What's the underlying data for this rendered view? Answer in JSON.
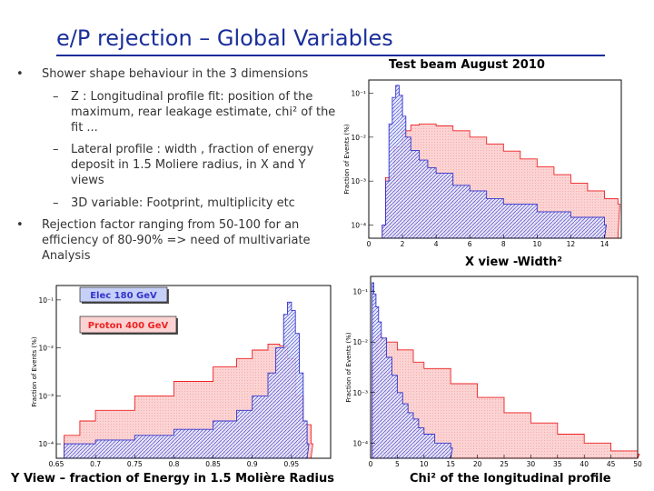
{
  "slide": {
    "title": "e/P rejection – Global Variables",
    "bullets": [
      {
        "marker": "•",
        "text": "Shower shape behaviour in the 3 dimensions",
        "sub": [
          {
            "marker": "–",
            "text": "Z : Longitudinal profile fit: position of the maximum, rear leakage estimate, chi² of the fit ..."
          },
          {
            "marker": "–",
            "text": "Lateral profile : width , fraction of energy deposit in 1.5 Moliere radius, in X and Y views"
          },
          {
            "marker": "–",
            "text": "3D variable: Footprint, multiplicity etc"
          }
        ]
      },
      {
        "marker": "•",
        "text": "Rejection factor ranging from 50-100 for an efficiency of 80-90% => need of multivariate Analysis",
        "sub": []
      }
    ]
  },
  "colors": {
    "title": "#1a2f9a",
    "electron": "#3333cc",
    "proton": "#ee2222",
    "proton_fill": "#fbd3d3"
  },
  "chart_data": [
    {
      "id": "xwidth",
      "type": "area",
      "title": "Test beam August 2010",
      "xlabel": "X view -Width²",
      "ylabel": "Fraction of Events (%)",
      "log_y": true,
      "xlim": [
        0,
        15
      ],
      "ylim": [
        5e-05,
        0.2
      ],
      "xticks": [
        0,
        2,
        4,
        6,
        8,
        10,
        12,
        14
      ],
      "yticks": [
        {
          "v": 0.1,
          "label": "10⁻¹"
        },
        {
          "v": 0.01,
          "label": "10⁻²"
        },
        {
          "v": 0.001,
          "label": "10⁻³"
        },
        {
          "v": 0.0001,
          "label": "10⁻⁴"
        }
      ],
      "series": [
        {
          "color": "#3333cc",
          "x": [
            0.8,
            1.0,
            1.2,
            1.4,
            1.6,
            1.8,
            2.0,
            2.2,
            2.5,
            3.0,
            3.5,
            4.0,
            5.0,
            6.0,
            7.0,
            8.0,
            10.0,
            12.0,
            14.0
          ],
          "y": [
            0.0001,
            0.001,
            0.02,
            0.08,
            0.15,
            0.09,
            0.03,
            0.01,
            0.005,
            0.003,
            0.002,
            0.0015,
            0.0008,
            0.0006,
            0.0004,
            0.0003,
            0.0002,
            0.00015,
            0.0001
          ]
        },
        {
          "color": "#ee2222",
          "x": [
            0.8,
            1.0,
            1.5,
            2.0,
            2.5,
            3.0,
            4.0,
            5.0,
            6.0,
            7.0,
            8.0,
            9.0,
            10.0,
            11.0,
            12.0,
            13.0,
            14.0,
            14.8
          ],
          "y": [
            0.0001,
            0.0012,
            0.006,
            0.014,
            0.019,
            0.02,
            0.018,
            0.014,
            0.01,
            0.007,
            0.0048,
            0.0032,
            0.0021,
            0.0014,
            0.0009,
            0.0006,
            0.0004,
            0.0003
          ]
        }
      ]
    },
    {
      "id": "yfrac",
      "type": "area",
      "title": "",
      "xlabel": "Y View – fraction of Energy in 1.5 Molière Radius",
      "ylabel": "Fraction of Events (%)",
      "log_y": true,
      "xlim": [
        0.65,
        1.0
      ],
      "ylim": [
        5e-05,
        0.2
      ],
      "xticks": [
        0.65,
        0.7,
        0.75,
        0.8,
        0.85,
        0.9,
        0.95
      ],
      "yticks": [
        {
          "v": 0.1,
          "label": "10⁻¹"
        },
        {
          "v": 0.01,
          "label": "10⁻²"
        },
        {
          "v": 0.001,
          "label": "10⁻³"
        },
        {
          "v": 0.0001,
          "label": "10⁻⁴"
        }
      ],
      "legend": [
        {
          "label": "Elec 180 GeV",
          "color": "#3333cc",
          "fill": "#c7d0f7"
        },
        {
          "label": "Proton 400 GeV",
          "color": "#ee2222",
          "fill": "#fbd3d3"
        }
      ],
      "series": [
        {
          "color": "#3333cc",
          "x": [
            0.66,
            0.7,
            0.75,
            0.8,
            0.85,
            0.88,
            0.9,
            0.92,
            0.93,
            0.94,
            0.945,
            0.95,
            0.955,
            0.96,
            0.965,
            0.97
          ],
          "y": [
            0.0001,
            0.00012,
            0.00015,
            0.0002,
            0.0003,
            0.0005,
            0.001,
            0.003,
            0.01,
            0.05,
            0.09,
            0.06,
            0.02,
            0.003,
            0.0003,
            0.0001
          ]
        },
        {
          "color": "#ee2222",
          "x": [
            0.66,
            0.68,
            0.7,
            0.75,
            0.8,
            0.85,
            0.88,
            0.9,
            0.92,
            0.935,
            0.945,
            0.955,
            0.965,
            0.975
          ],
          "y": [
            0.00015,
            0.0003,
            0.0005,
            0.001,
            0.002,
            0.004,
            0.006,
            0.009,
            0.012,
            0.011,
            0.006,
            0.001,
            0.00025,
            0.0001
          ]
        }
      ]
    },
    {
      "id": "chi2",
      "type": "area",
      "title": "",
      "xlabel": "Chi² of the longitudinal profile",
      "ylabel": "Fraction of Events (%)",
      "log_y": true,
      "xlim": [
        0,
        50
      ],
      "ylim": [
        5e-05,
        0.2
      ],
      "xticks": [
        0,
        5,
        10,
        15,
        20,
        25,
        30,
        35,
        40,
        45,
        50
      ],
      "yticks": [
        {
          "v": 0.1,
          "label": "10⁻¹"
        },
        {
          "v": 0.01,
          "label": "10⁻²"
        },
        {
          "v": 0.001,
          "label": "10⁻³"
        },
        {
          "v": 0.0001,
          "label": "10⁻⁴"
        }
      ],
      "series": [
        {
          "color": "#3333cc",
          "x": [
            0.3,
            0.6,
            1,
            1.5,
            2,
            3,
            4,
            5,
            6,
            7,
            8,
            9,
            10,
            12,
            15
          ],
          "y": [
            0.15,
            0.09,
            0.05,
            0.025,
            0.012,
            0.005,
            0.0022,
            0.001,
            0.0006,
            0.0004,
            0.0003,
            0.0002,
            0.00015,
            0.0001,
            8e-05
          ]
        },
        {
          "color": "#ee2222",
          "x": [
            0.3,
            1,
            1.5,
            2,
            3,
            5,
            8,
            10,
            15,
            20,
            25,
            30,
            35,
            40,
            45,
            50
          ],
          "y": [
            0.004,
            0.012,
            0.014,
            0.012,
            0.01,
            0.007,
            0.004,
            0.003,
            0.0015,
            0.0008,
            0.0004,
            0.00025,
            0.00015,
            0.0001,
            7e-05,
            6e-05
          ]
        }
      ]
    }
  ]
}
